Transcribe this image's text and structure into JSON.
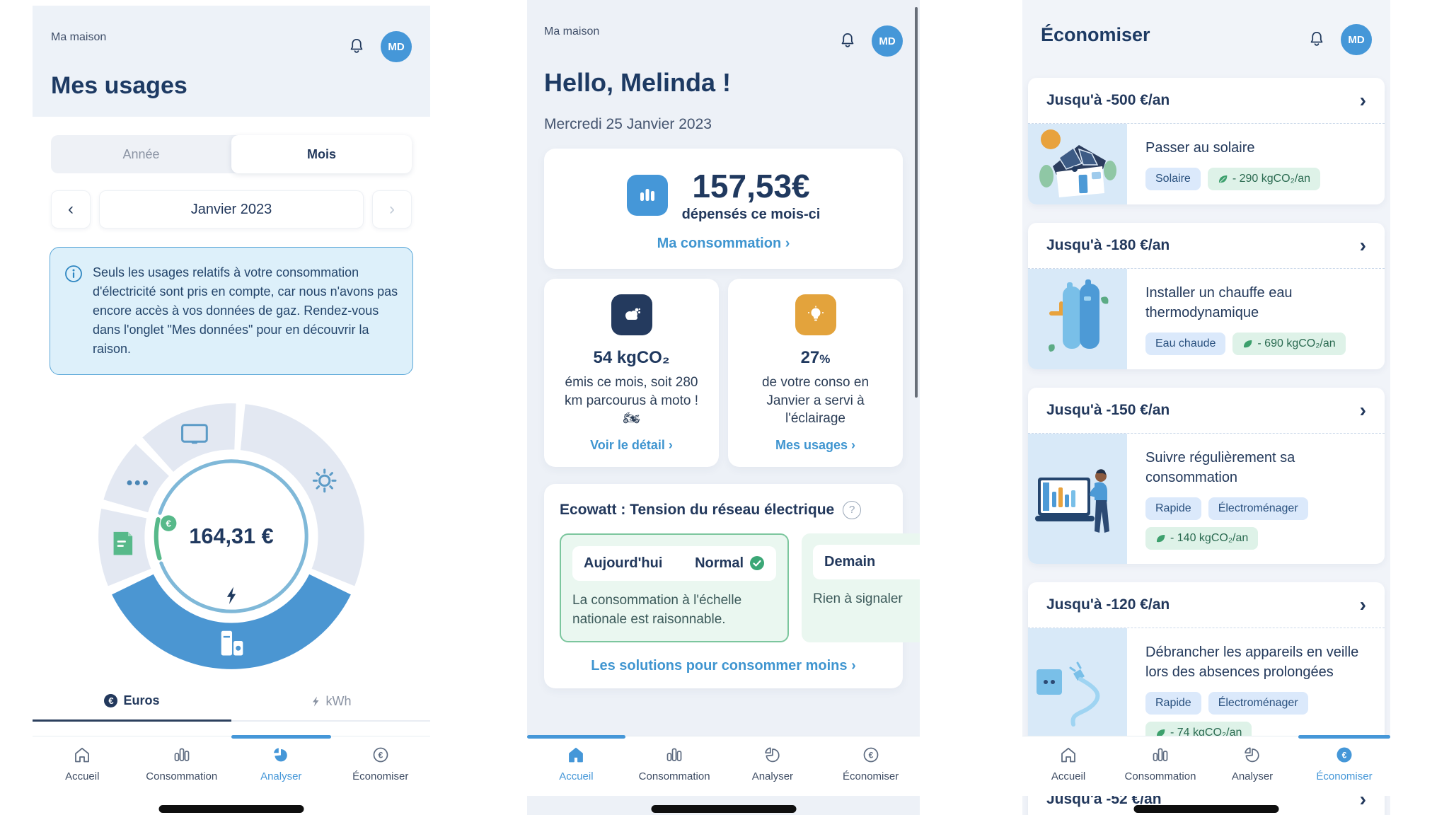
{
  "nav_labels": [
    "Accueil",
    "Consommation",
    "Analyser",
    "Économiser"
  ],
  "screen1": {
    "crumb": "Ma maison",
    "title": "Mes usages",
    "avatar": "MD",
    "tab_year": "Année",
    "tab_month": "Mois",
    "prev": "‹",
    "month": "Janvier 2023",
    "next": "›",
    "info": "Seuls les usages relatifs à votre consommation d'électricité sont pris en compte, car nous n'avons pas encore accès à vos données de gaz. Rendez-vous dans l'onglet \"Mes données\" pour en découvrir la raison.",
    "chart": {
      "type": "donut",
      "total": "164,31 €",
      "currency_badge": "€",
      "segments": [
        {
          "icon": "screen",
          "start": 318,
          "end": 362,
          "color": "#e3e8f2"
        },
        {
          "icon": "sun",
          "start": 6,
          "end": 112,
          "color": "#e3e8f2"
        },
        {
          "icon": "appliances-lightning",
          "start": 116,
          "end": 244,
          "color": "#4b96d2"
        },
        {
          "icon": "document",
          "start": 248,
          "end": 282,
          "color": "#e3e8f2"
        },
        {
          "icon": "more-dots",
          "start": 286,
          "end": 314,
          "color": "#e3e8f2"
        }
      ],
      "inner_ring": [
        {
          "color": "#7fb8d8",
          "start": 288,
          "end": 249,
          "width": 5
        },
        {
          "color": "#57b98a",
          "start": 253,
          "end": 283,
          "width": 6
        }
      ]
    },
    "unit_euros": "Euros",
    "unit_kwh": "kWh",
    "active_nav": "Analyser"
  },
  "screen2": {
    "crumb": "Ma maison",
    "greeting": "Hello, Melinda !",
    "date": "Mercredi 25 Janvier 2023",
    "avatar": "MD",
    "spend": {
      "amount": "157,53",
      "currency": "€",
      "label": "dépensés ce mois-ci",
      "link": "Ma consommation",
      "chevron": "›"
    },
    "co2": {
      "value": "54 kgCO₂",
      "text": "émis ce mois, soit 280 km parcourus à moto ! 🏍",
      "link": "Voir le détail",
      "chevron": "›"
    },
    "lighting": {
      "value": "27",
      "unit": "%",
      "text": "de votre conso en Janvier a servi à l'éclairage",
      "link": "Mes usages",
      "chevron": "›"
    },
    "ecowatt": {
      "title": "Ecowatt : Tension du réseau électrique",
      "help": "?",
      "today_label": "Aujourd'hui",
      "today_status": "Normal",
      "today_text": "La consommation à l'échelle nationale est raisonnable.",
      "tomorrow_label": "Demain",
      "tomorrow_text": "Rien à signaler",
      "link": "Les solutions pour consommer moins",
      "chevron": "›"
    },
    "active_nav": "Accueil"
  },
  "screen3": {
    "title": "Économiser",
    "avatar": "MD",
    "offers": [
      {
        "savings": "Jusqu'à -500 €/an",
        "chevron": "›",
        "title": "Passer au solaire",
        "tag1": "Solaire",
        "co2": "- 290 kgCO₂/an",
        "illustration": "solar-house"
      },
      {
        "savings": "Jusqu'à -180 €/an",
        "chevron": "›",
        "title": "Installer un chauffe eau thermodynamique",
        "tag1": "Eau chaude",
        "co2": "- 690 kgCO₂/an",
        "illustration": "water-heater"
      },
      {
        "savings": "Jusqu'à -150 €/an",
        "chevron": "›",
        "title": "Suivre régulièrement sa consommation",
        "tag1": "Rapide",
        "tag2": "Électroménager",
        "co2": "- 140 kgCO₂/an",
        "illustration": "laptop-chart"
      },
      {
        "savings": "Jusqu'à -120 €/an",
        "chevron": "›",
        "title": "Débrancher les appareils en veille lors des absences prolongées",
        "tag1": "Rapide",
        "tag2": "Électroménager",
        "co2": "- 74 kgCO₂/an",
        "illustration": "unplug"
      },
      {
        "savings": "Jusqu'à -52 €/an",
        "chevron": "›"
      }
    ],
    "active_nav": "Économiser"
  }
}
